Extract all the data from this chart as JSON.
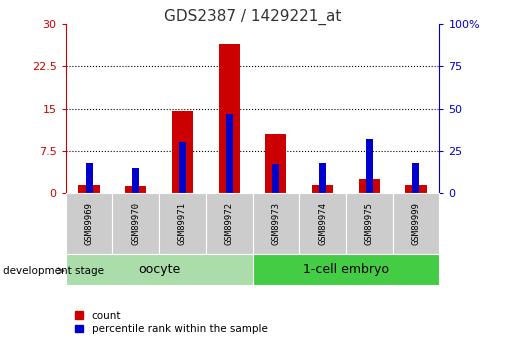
{
  "title": "GDS2387 / 1429221_at",
  "samples": [
    "GSM89969",
    "GSM89970",
    "GSM89971",
    "GSM89972",
    "GSM89973",
    "GSM89974",
    "GSM89975",
    "GSM89999"
  ],
  "count_values": [
    1.5,
    1.2,
    14.5,
    26.5,
    10.5,
    1.5,
    2.5,
    1.5
  ],
  "percentile_values": [
    18,
    15,
    30,
    47,
    17,
    18,
    32,
    18
  ],
  "left_ylim": [
    0,
    30
  ],
  "right_ylim": [
    0,
    100
  ],
  "left_yticks": [
    0,
    7.5,
    15,
    22.5,
    30
  ],
  "right_yticks": [
    0,
    25,
    50,
    75,
    100
  ],
  "left_yticklabels": [
    "0",
    "7.5",
    "15",
    "22.5",
    "30"
  ],
  "right_yticklabels": [
    "0",
    "25",
    "50",
    "75",
    "100%"
  ],
  "groups": [
    {
      "label": "oocyte",
      "start": 0,
      "end": 4,
      "color": "#aaddaa"
    },
    {
      "label": "1-cell embryo",
      "start": 4,
      "end": 8,
      "color": "#44cc44"
    }
  ],
  "count_bar_width": 0.45,
  "percentile_bar_width": 0.15,
  "count_color": "#cc0000",
  "percentile_color": "#0000cc",
  "left_tick_color": "#cc0000",
  "right_tick_color": "#0000cc",
  "dev_stage_label": "development stage",
  "legend_count": "count",
  "legend_percentile": "percentile rank within the sample",
  "grid_yticks": [
    7.5,
    15,
    22.5
  ]
}
